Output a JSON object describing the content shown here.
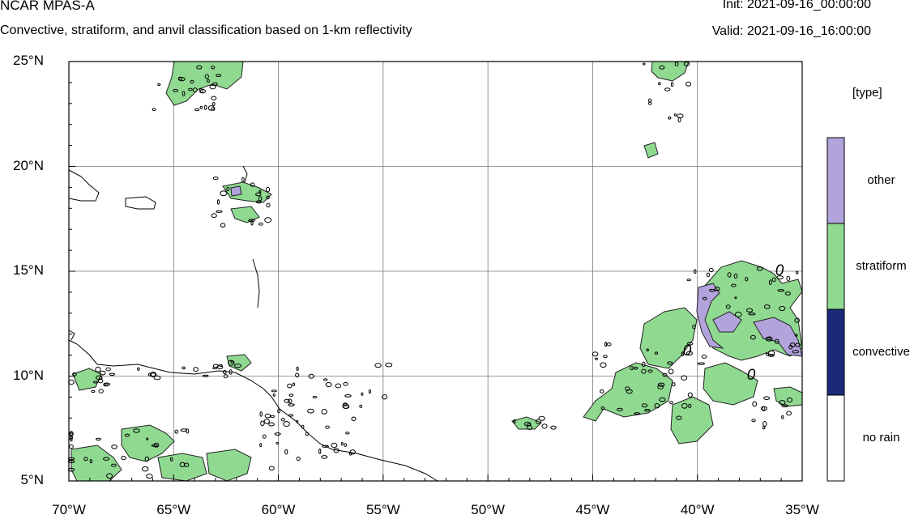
{
  "header": {
    "model": "NCAR MPAS-A",
    "description": "Convective, stratiform, and anvil classification based on 1-km reflectivity",
    "init": "Init: 2021-09-16_00:00:00",
    "valid": "Valid: 2021-09-16_16:00:00"
  },
  "map": {
    "lat_ticks": [
      "25°N",
      "20°N",
      "15°N",
      "10°N",
      "5°N"
    ],
    "lon_ticks": [
      "70°W",
      "65°W",
      "60°W",
      "55°W",
      "50°W",
      "45°W",
      "40°W",
      "35°W"
    ],
    "lat_range": [
      5,
      25
    ],
    "lon_range": [
      -70,
      -35
    ],
    "gridlines": true,
    "contour_labels": [
      "0",
      "0",
      "0"
    ]
  },
  "legend": {
    "title": "[type]",
    "entries": [
      {
        "label": "other",
        "color": "#b3a3dc"
      },
      {
        "label": "stratiform",
        "color": "#8fd990"
      },
      {
        "label": "convective",
        "color": "#1b2a78"
      },
      {
        "label": "no rain",
        "color": "#ffffff"
      }
    ]
  },
  "colors": {
    "stratiform": "#8fd990",
    "other": "#b3a3dc",
    "convective": "#1b2a78"
  }
}
